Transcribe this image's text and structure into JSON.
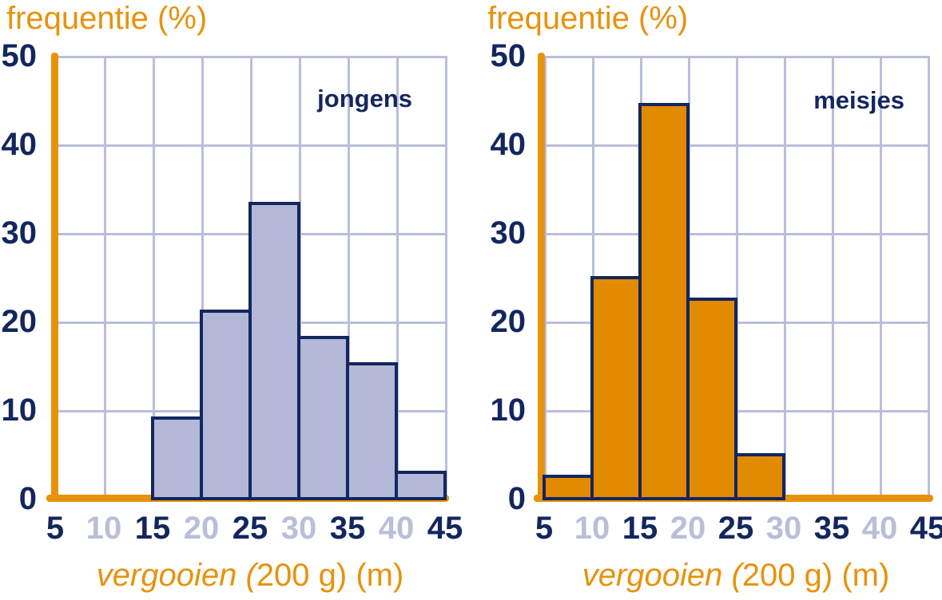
{
  "figure": {
    "background": "#FFFFFF"
  },
  "colors": {
    "accent_orange": "#E8920C",
    "navy": "#13265E",
    "grid_lavender": "#B9BEDB",
    "tick_dark": "#13265E",
    "tick_light": "#B9BED9",
    "boys_bar_fill": "#B3B8D8",
    "girls_bar_fill": "#E28B00",
    "bar_border": "#13265E"
  },
  "chart_data": [
    {
      "type": "bar",
      "kind": "histogram",
      "series_label": "jongens",
      "ylabel": "frequentie (%)",
      "xlabel": "vergooien (200 g) (m)",
      "xlabel_italic": "vergooien (",
      "xlabel_regular": "200 g) (m)",
      "xlim": [
        5,
        45
      ],
      "ylim": [
        0,
        50
      ],
      "grid": true,
      "x_ticks": [
        "5",
        "10",
        "15",
        "20",
        "25",
        "30",
        "35",
        "40",
        "45"
      ],
      "y_ticks": [
        "50",
        "40",
        "30",
        "20",
        "10",
        "0"
      ],
      "bin_width": 5,
      "bins": [
        {
          "range": [
            15,
            20
          ],
          "value": 9.1
        },
        {
          "range": [
            20,
            25
          ],
          "value": 21.2
        },
        {
          "range": [
            25,
            30
          ],
          "value": 33.3
        },
        {
          "range": [
            30,
            35
          ],
          "value": 18.2
        },
        {
          "range": [
            35,
            40
          ],
          "value": 15.2
        },
        {
          "range": [
            40,
            45
          ],
          "value": 3.0
        }
      ],
      "bar_fill": "#B3B8D8",
      "bar_border": "#13265E"
    },
    {
      "type": "bar",
      "kind": "histogram",
      "series_label": "meisjes",
      "ylabel": "frequentie (%)",
      "xlabel": "vergooien (200 g) (m)",
      "xlabel_italic": "vergooien (",
      "xlabel_regular": "200 g) (m)",
      "xlim": [
        5,
        45
      ],
      "ylim": [
        0,
        50
      ],
      "grid": true,
      "x_ticks": [
        "5",
        "10",
        "15",
        "20",
        "25",
        "30",
        "35",
        "40",
        "45"
      ],
      "y_ticks": [
        "50",
        "40",
        "30",
        "20",
        "10",
        "0"
      ],
      "bin_width": 5,
      "bins": [
        {
          "range": [
            5,
            10
          ],
          "value": 2.5
        },
        {
          "range": [
            10,
            15
          ],
          "value": 25
        },
        {
          "range": [
            15,
            20
          ],
          "value": 44.5
        },
        {
          "range": [
            20,
            25
          ],
          "value": 22.5
        },
        {
          "range": [
            25,
            30
          ],
          "value": 5
        }
      ],
      "bar_fill": "#E28B00",
      "bar_border": "#13265E"
    }
  ]
}
